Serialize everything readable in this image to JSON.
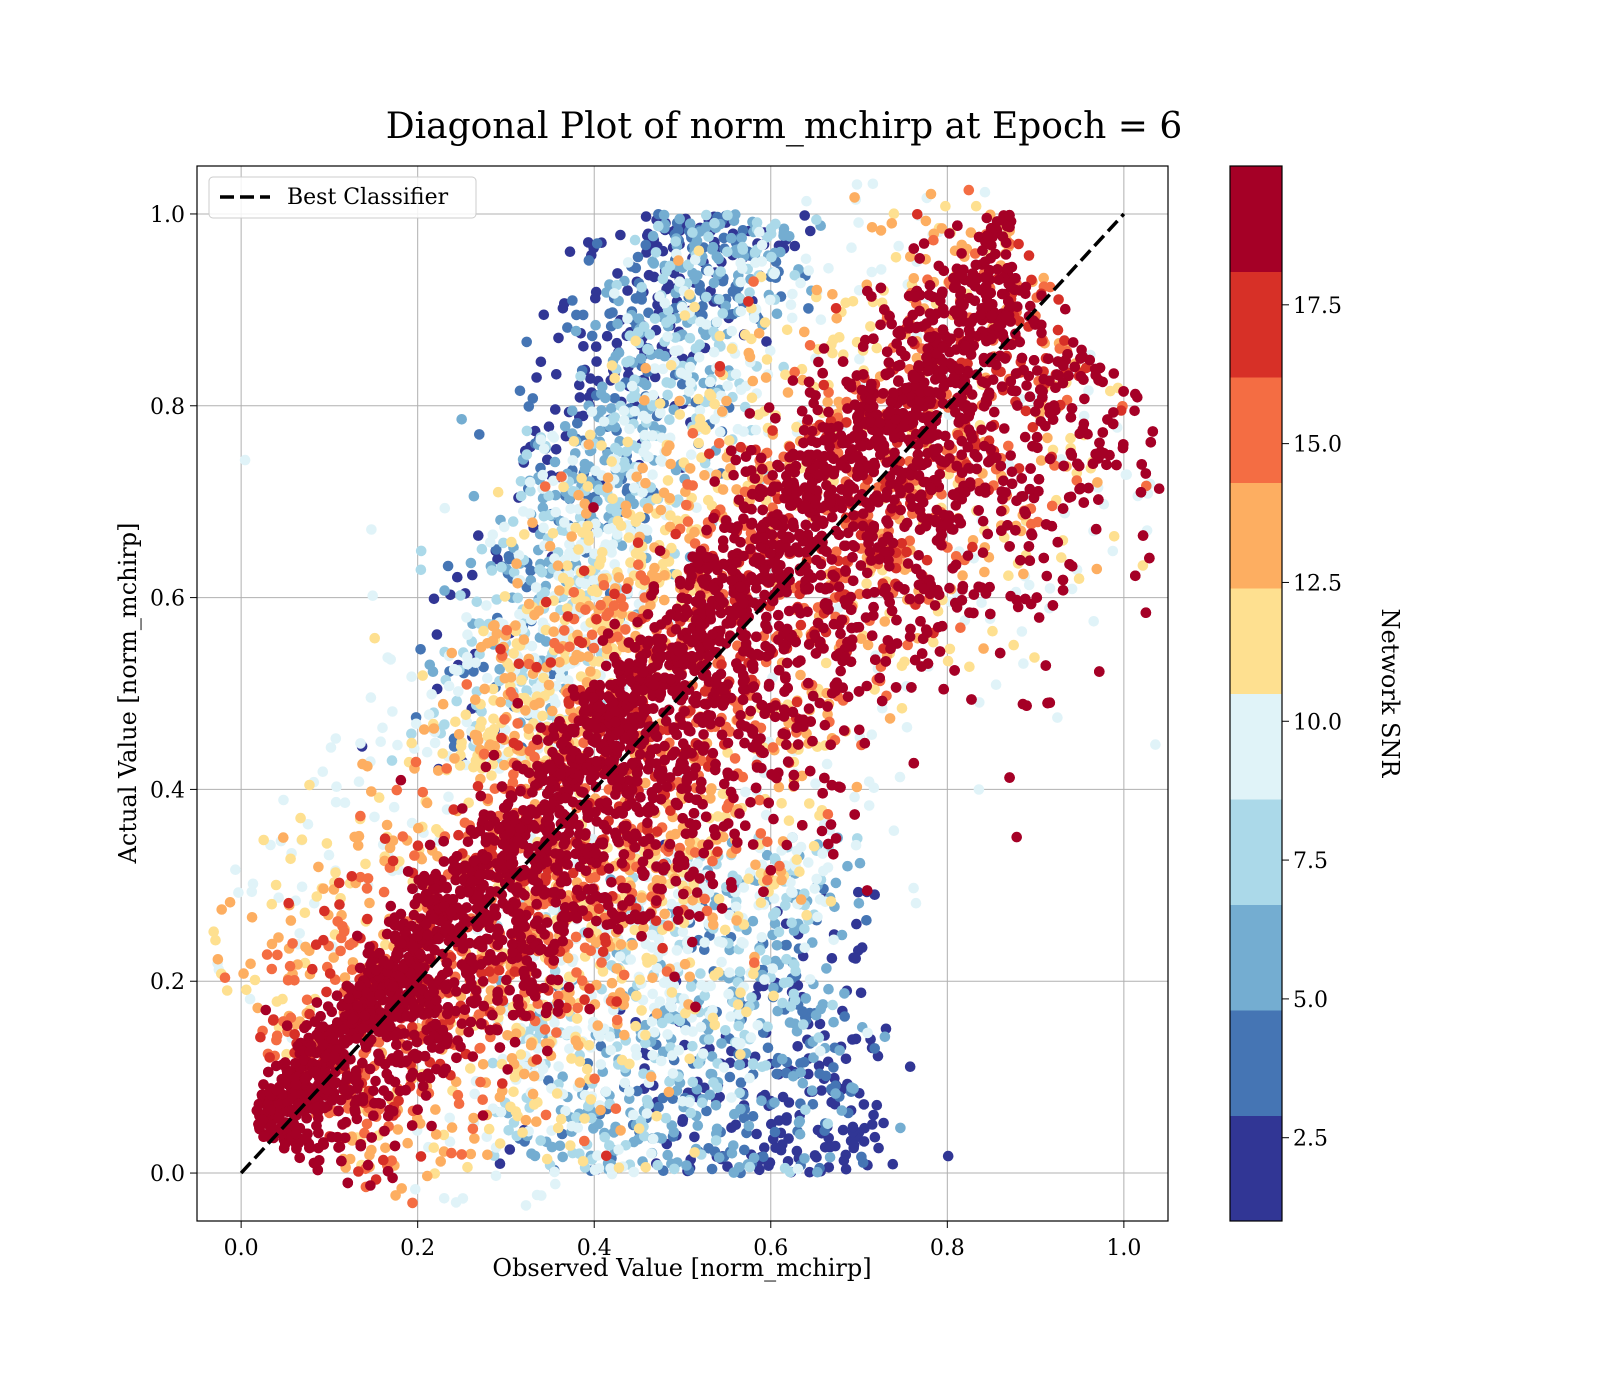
{
  "chart_data": {
    "type": "scatter",
    "title": "Diagonal Plot of norm_mchirp at Epoch = 6",
    "xlabel": "Observed Value [norm_mchirp]",
    "ylabel": "Actual Value [norm_mchirp]",
    "xlim": [
      -0.05,
      1.05
    ],
    "ylim": [
      -0.05,
      1.05
    ],
    "xticks": [
      0.0,
      0.2,
      0.4,
      0.6,
      0.8,
      1.0
    ],
    "xtick_labels": [
      "0.0",
      "0.2",
      "0.4",
      "0.6",
      "0.8",
      "1.0"
    ],
    "yticks": [
      0.0,
      0.2,
      0.4,
      0.6,
      0.8,
      1.0
    ],
    "ytick_labels": [
      "0.0",
      "0.2",
      "0.4",
      "0.6",
      "0.8",
      "1.0"
    ],
    "grid": true,
    "legend": {
      "placement": "top-left",
      "entries": [
        "Best Classifier"
      ]
    },
    "reference_line": {
      "name": "Best Classifier",
      "style": "dashed",
      "color": "#000000",
      "from": [
        0,
        0
      ],
      "to": [
        1,
        1
      ]
    },
    "colorbar": {
      "label": "Network SNR",
      "range": [
        1.0,
        20.0
      ],
      "ticks": [
        2.5,
        5.0,
        7.5,
        10.0,
        12.5,
        15.0,
        17.5
      ],
      "tick_labels": [
        "2.5",
        "5.0",
        "7.5",
        "10.0",
        "12.5",
        "15.0",
        "17.5"
      ],
      "colors": [
        "#313695",
        "#4575b4",
        "#74add1",
        "#abd9e9",
        "#e0f3f8",
        "#fee090",
        "#fdae61",
        "#f46d43",
        "#d73027",
        "#a50026"
      ]
    },
    "density_regions": [
      {
        "name": "high-snr diagonal band",
        "snr": "17.5+",
        "center_line": "y = x",
        "x_range": [
          0.02,
          0.88
        ],
        "y_range": [
          0.0,
          1.0
        ]
      },
      {
        "name": "low-snr upper cluster",
        "snr": "1-10",
        "x_range": [
          0.3,
          0.6
        ],
        "y_range": [
          0.6,
          1.0
        ]
      },
      {
        "name": "low-snr lower cluster",
        "snr": "1-10",
        "x_range": [
          0.33,
          0.58
        ],
        "y_range": [
          0.0,
          0.22
        ]
      }
    ]
  }
}
